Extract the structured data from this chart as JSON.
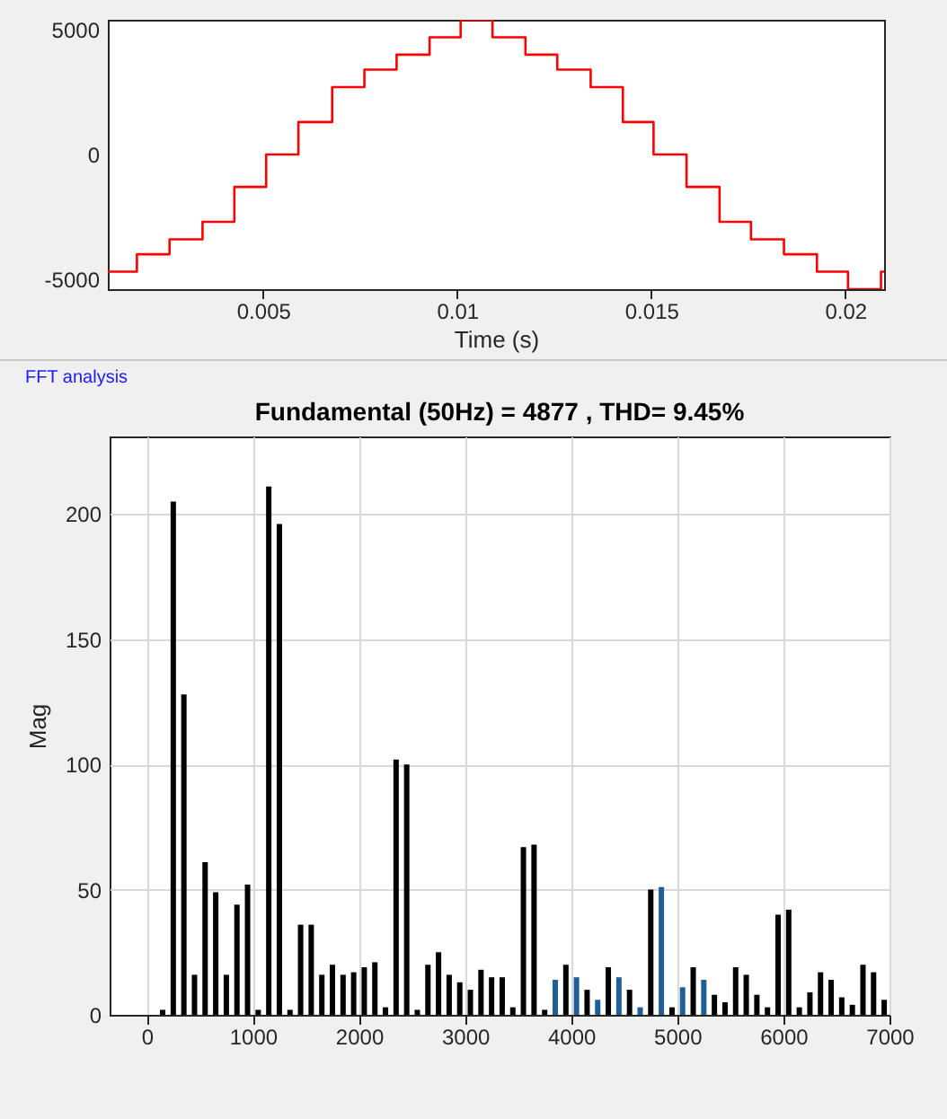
{
  "chart_data": [
    {
      "type": "step",
      "xlabel": "Time (s)",
      "x": [
        0.001,
        0.00175,
        0.00259,
        0.00344,
        0.00426,
        0.00508,
        0.00591,
        0.00678,
        0.00761,
        0.00844,
        0.00929,
        0.01009,
        0.01091,
        0.01176,
        0.01258,
        0.01344,
        0.01427,
        0.01506,
        0.01591,
        0.01676,
        0.01757,
        0.01842,
        0.01927,
        0.02007,
        0.02092,
        0.021
      ],
      "series": [
        {
          "color": "#ff0000",
          "values": [
            -4700,
            -4000,
            -3400,
            -2700,
            -1300,
            0,
            1300,
            2700,
            3400,
            4000,
            4700,
            5400,
            4700,
            4000,
            3400,
            2700,
            1300,
            0,
            -1300,
            -2700,
            -3400,
            -4000,
            -4700,
            -5400,
            -4700,
            -4700
          ]
        }
      ],
      "xlim": [
        0.001,
        0.021
      ],
      "ylim": [
        -5400,
        5400
      ],
      "xticks": [
        0.005,
        0.01,
        0.015,
        0.02
      ],
      "yticks": [
        -5000,
        0,
        5000
      ]
    },
    {
      "type": "bar",
      "title": "Fundamental (50Hz) = 4877 , THD= 9.45%",
      "ylabel": "Mag",
      "annotations": [
        "FFT analysis"
      ],
      "x": [
        150,
        250,
        350,
        450,
        550,
        650,
        750,
        850,
        950,
        1050,
        1150,
        1250,
        1350,
        1450,
        1550,
        1650,
        1750,
        1850,
        1950,
        2050,
        2150,
        2250,
        2350,
        2450,
        2550,
        2650,
        2750,
        2850,
        2950,
        3050,
        3150,
        3250,
        3350,
        3450,
        3550,
        3650,
        3750,
        3850,
        3950,
        4050,
        4150,
        4250,
        4350,
        4450,
        4550,
        4650,
        4750,
        4850,
        4950,
        5050,
        5150,
        5250,
        5350,
        5450,
        5550,
        5650,
        5750,
        5850,
        5950,
        6050,
        6150,
        6250,
        6350,
        6450,
        6550,
        6650,
        6750,
        6850,
        6950
      ],
      "values": [
        2,
        205,
        128,
        16,
        61,
        49,
        16,
        44,
        52,
        2,
        211,
        196,
        2,
        36,
        36,
        16,
        20,
        16,
        17,
        19,
        21,
        3,
        102,
        100,
        2,
        20,
        25,
        16,
        13,
        10,
        18,
        15,
        15,
        3,
        67,
        68,
        2,
        14,
        20,
        15,
        10,
        6,
        19,
        15,
        10,
        3,
        50,
        51,
        3,
        11,
        19,
        14,
        8,
        5,
        19,
        16,
        8,
        3,
        40,
        42,
        3,
        9,
        17,
        14,
        7,
        4,
        20,
        17,
        6
      ],
      "colors": [
        "#000000",
        "#000000",
        "#000000",
        "#000000",
        "#000000",
        "#000000",
        "#000000",
        "#000000",
        "#000000",
        "#000000",
        "#000000",
        "#000000",
        "#000000",
        "#000000",
        "#000000",
        "#000000",
        "#000000",
        "#000000",
        "#000000",
        "#000000",
        "#000000",
        "#000000",
        "#000000",
        "#000000",
        "#000000",
        "#000000",
        "#000000",
        "#000000",
        "#000000",
        "#000000",
        "#000000",
        "#000000",
        "#000000",
        "#000000",
        "#000000",
        "#000000",
        "#000000",
        "#1f5f96",
        "#000000",
        "#1f5f96",
        "#000000",
        "#1f5f96",
        "#000000",
        "#1f5f96",
        "#000000",
        "#1f5f96",
        "#000000",
        "#1f5f96",
        "#000000",
        "#1f5f96",
        "#000000",
        "#1f5f96",
        "#000000",
        "#000000",
        "#000000",
        "#000000",
        "#000000",
        "#000000",
        "#000000",
        "#000000",
        "#000000",
        "#000000",
        "#000000",
        "#000000",
        "#000000",
        "#000000",
        "#000000",
        "#000000",
        "#000000"
      ],
      "xlim": [
        -350,
        7000
      ],
      "ylim": [
        0,
        231
      ],
      "xticks": [
        0,
        1000,
        2000,
        3000,
        4000,
        5000,
        6000,
        7000
      ],
      "yticks": [
        0,
        50,
        100,
        150,
        200
      ],
      "grid": true
    }
  ]
}
